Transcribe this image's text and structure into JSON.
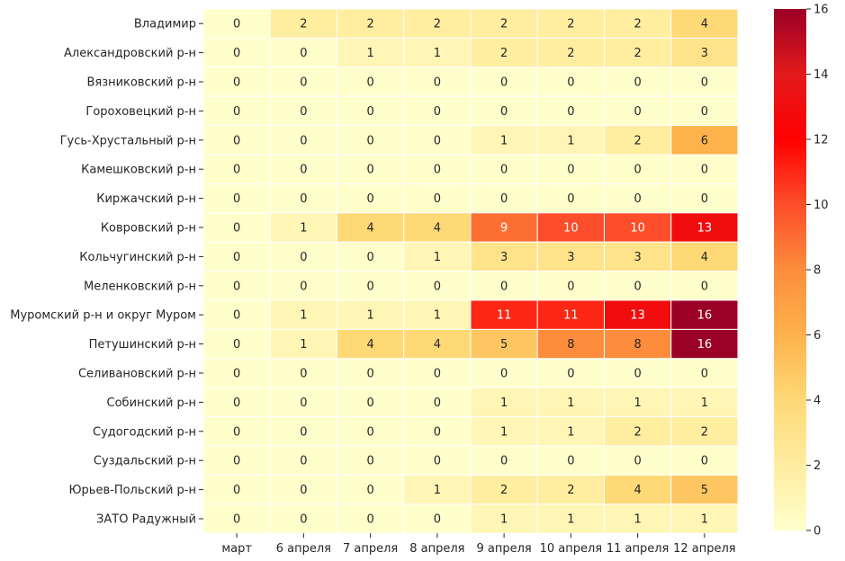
{
  "chart_data": {
    "type": "heatmap",
    "rows": [
      "Владимир",
      "Александровский р-н",
      "Вязниковский р-н",
      "Гороховецкий р-н",
      "Гусь-Хрустальный р-н",
      "Камешковский р-н",
      "Киржачский р-н",
      "Ковровский р-н",
      "Кольчугинский р-н",
      "Меленковский р-н",
      "Муромский р-н и округ Муром",
      "Петушинский р-н",
      "Селивановский р-н",
      "Собинский р-н",
      "Судогодский р-н",
      "Суздальский р-н",
      "Юрьев-Польский р-н",
      "ЗАТО Радужный"
    ],
    "columns": [
      "март",
      "6 апреля",
      "7 апреля",
      "8 апреля",
      "9 апреля",
      "10 апреля",
      "11 апреля",
      "12 апреля"
    ],
    "values": [
      [
        0,
        2,
        2,
        2,
        2,
        2,
        2,
        4
      ],
      [
        0,
        0,
        1,
        1,
        2,
        2,
        2,
        3
      ],
      [
        0,
        0,
        0,
        0,
        0,
        0,
        0,
        0
      ],
      [
        0,
        0,
        0,
        0,
        0,
        0,
        0,
        0
      ],
      [
        0,
        0,
        0,
        0,
        1,
        1,
        2,
        6
      ],
      [
        0,
        0,
        0,
        0,
        0,
        0,
        0,
        0
      ],
      [
        0,
        0,
        0,
        0,
        0,
        0,
        0,
        0
      ],
      [
        0,
        1,
        4,
        4,
        9,
        10,
        10,
        13
      ],
      [
        0,
        0,
        0,
        1,
        3,
        3,
        3,
        4
      ],
      [
        0,
        0,
        0,
        0,
        0,
        0,
        0,
        0
      ],
      [
        0,
        1,
        1,
        1,
        11,
        11,
        13,
        16
      ],
      [
        0,
        1,
        4,
        4,
        5,
        8,
        8,
        16
      ],
      [
        0,
        0,
        0,
        0,
        0,
        0,
        0,
        0
      ],
      [
        0,
        0,
        0,
        0,
        1,
        1,
        1,
        1
      ],
      [
        0,
        0,
        0,
        0,
        1,
        1,
        2,
        2
      ],
      [
        0,
        0,
        0,
        0,
        0,
        0,
        0,
        0
      ],
      [
        0,
        0,
        0,
        1,
        2,
        2,
        4,
        5
      ],
      [
        0,
        0,
        0,
        0,
        1,
        1,
        1,
        1
      ]
    ],
    "colorbar": {
      "min": 0,
      "max": 16,
      "ticks": [
        0,
        2,
        4,
        6,
        8,
        10,
        12,
        14,
        16
      ],
      "colormap": "YlOrRd",
      "stops": [
        "#ffffcc",
        "#ffeda0",
        "#fed976",
        "#feb24c",
        "#fd8d3c",
        "#fc4e2a",
        "#ff0000",
        "#e31a1c",
        "#9b0026"
      ]
    },
    "title": "",
    "xlabel": "",
    "ylabel": ""
  }
}
